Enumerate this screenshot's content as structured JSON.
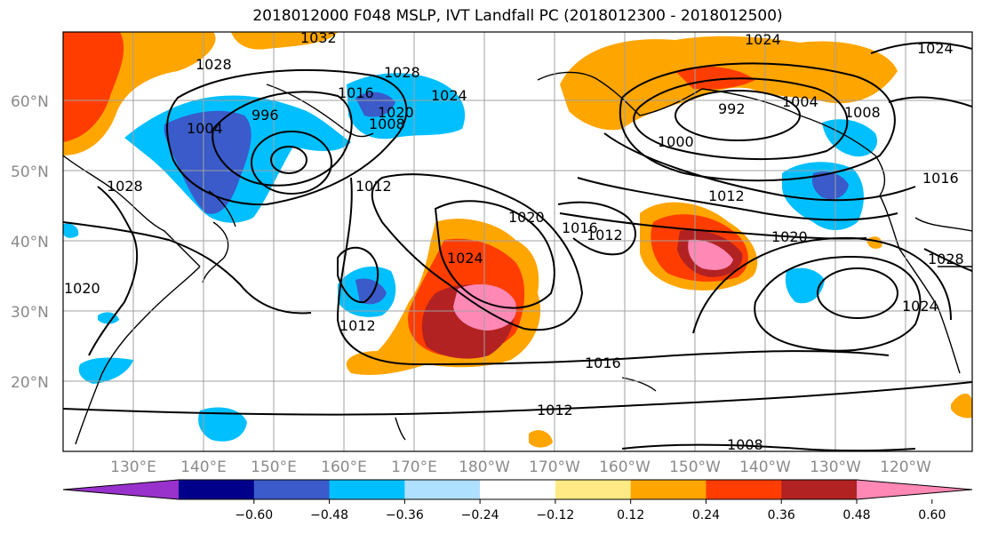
{
  "title": "2018012000 F048 MSLP, IVT Landfall PC (2018012300 - 2018012500)",
  "lat_labels": [
    "60°N",
    "50°N",
    "40°N",
    "30°N",
    "20°N"
  ],
  "lon_labels": [
    "130°E",
    "140°E",
    "150°E",
    "160°E",
    "170°E",
    "180°W",
    "170°W",
    "160°W",
    "150°W",
    "140°W",
    "130°W",
    "120°W"
  ],
  "contour_labels": [
    "1032",
    "1024",
    "1024",
    "1028",
    "1028",
    "1024",
    "996",
    "1004",
    "1000",
    "992",
    "1004",
    "1008",
    "1008",
    "1012",
    "1016",
    "1012",
    "1016",
    "1020",
    "1020",
    "1024",
    "1012",
    "1016",
    "1012",
    "1008",
    "1028",
    "1028",
    "1024",
    "1020",
    "1016",
    "1020",
    "1012"
  ],
  "colorbar": {
    "colors": [
      "#9932cc",
      "#00008b",
      "#3a5bc9",
      "#00bfff",
      "#b0e0ff",
      "#ffffff",
      "#ffea85",
      "#ffa500",
      "#ff3d00",
      "#b22222",
      "#ff88b5"
    ],
    "ticks": [
      "−0.60",
      "−0.48",
      "−0.36",
      "−0.24",
      "−0.12",
      "0.12",
      "0.24",
      "0.36",
      "0.48",
      "0.60"
    ]
  }
}
